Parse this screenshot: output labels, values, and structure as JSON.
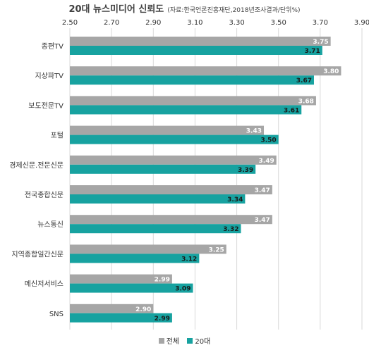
{
  "chart_data": {
    "type": "bar",
    "orientation": "horizontal",
    "title": "20대 뉴스미디어 신뢰도",
    "subtitle": "(자료:한국언론진흥재단,2018년조사결과/단위%)",
    "categories": [
      "종편TV",
      "지상파TV",
      "보도전문TV",
      "포털",
      "경제신문.전문신문",
      "전국종합신문",
      "뉴스통신",
      "지역종합일간신문",
      "메신저서비스",
      "SNS"
    ],
    "series": [
      {
        "name": "전체",
        "color": "#a6a6a6",
        "label_color": "#ffffff",
        "values": [
          3.75,
          3.8,
          3.68,
          3.43,
          3.49,
          3.47,
          3.47,
          3.25,
          2.99,
          2.9
        ],
        "labels": [
          "3.75",
          "3.80",
          "3.68",
          "3.43",
          "3.49",
          "3.47",
          "3.47",
          "3.25",
          "2.99",
          "2.90"
        ]
      },
      {
        "name": "20대",
        "color": "#17a2a0",
        "label_color": "#1a1a1a",
        "values": [
          3.71,
          3.67,
          3.61,
          3.5,
          3.39,
          3.34,
          3.32,
          3.12,
          3.09,
          2.99
        ],
        "labels": [
          "3.71",
          "3.67",
          "3.61",
          "3.50",
          "3.39",
          "3.34",
          "3.32",
          "3.12",
          "3.09",
          "2.99"
        ]
      }
    ],
    "xlim": [
      2.5,
      3.9
    ],
    "xticks": [
      "2.50",
      "2.70",
      "2.90",
      "3.10",
      "3.30",
      "3.50",
      "3.70",
      "3.90"
    ],
    "tick_values": [
      2.5,
      2.7,
      2.9,
      3.1,
      3.3,
      3.5,
      3.7,
      3.9
    ],
    "grid": "vertical",
    "legend_position": "bottom"
  }
}
